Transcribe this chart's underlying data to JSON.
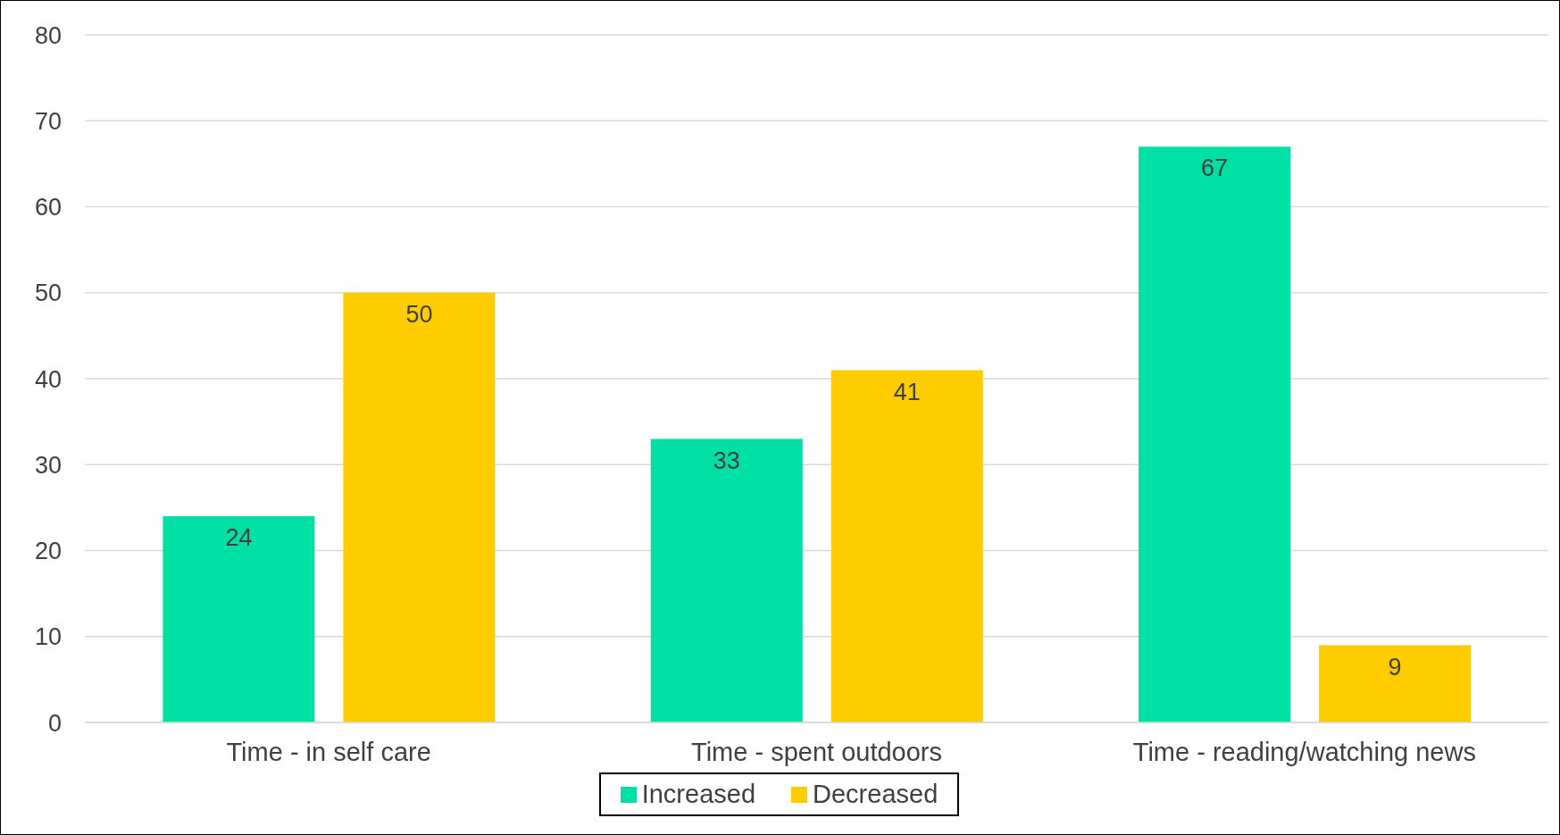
{
  "chart_data": {
    "type": "bar",
    "categories": [
      "Time - in self care",
      "Time - spent outdoors",
      "Time - reading/watching news"
    ],
    "series": [
      {
        "name": "Increased",
        "color": "#00e0a5",
        "values": [
          24,
          33,
          67
        ]
      },
      {
        "name": "Decreased",
        "color": "#ffcc00",
        "values": [
          50,
          41,
          9
        ]
      }
    ],
    "ylim": [
      0,
      80
    ],
    "yticks": [
      0,
      10,
      20,
      30,
      40,
      50,
      60,
      70,
      80
    ],
    "grid": "y",
    "legend": "bottom",
    "data_labels": true
  }
}
